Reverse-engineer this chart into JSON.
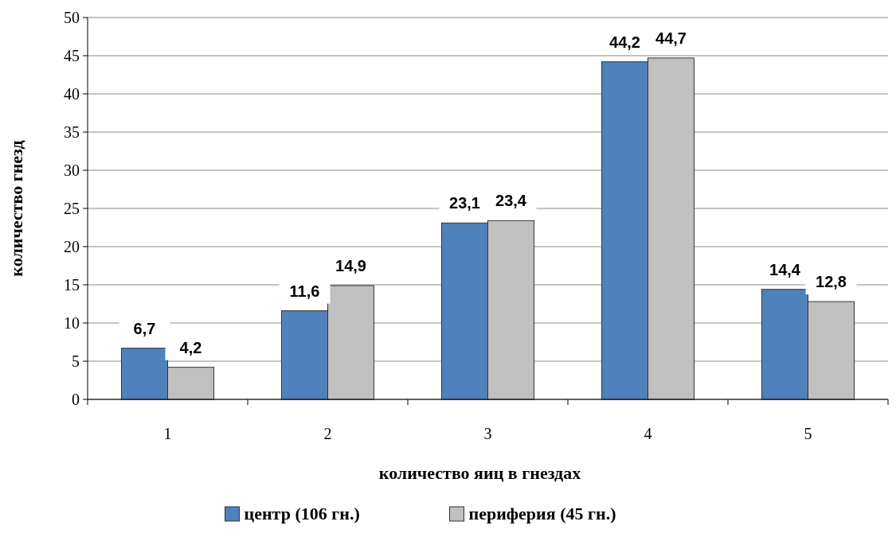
{
  "chart_data": {
    "type": "bar",
    "xlabel": "количество яиц в гнездах",
    "ylabel": "количество гнезд",
    "categories": [
      "1",
      "2",
      "3",
      "4",
      "5"
    ],
    "series": [
      {
        "name": "центр (106 гн.)",
        "color": "#4f81bd",
        "values": [
          6.7,
          11.6,
          23.1,
          44.2,
          14.4
        ]
      },
      {
        "name": "периферия (45 гн.)",
        "color": "#c0c0c0",
        "values": [
          4.2,
          14.9,
          23.4,
          44.7,
          12.8
        ]
      }
    ],
    "value_labels": [
      [
        "6,7",
        "11,6",
        "23,1",
        "44,2",
        "14,4"
      ],
      [
        "4,2",
        "14,9",
        "23,4",
        "44,7",
        "12,8"
      ]
    ],
    "ylim": [
      0,
      50
    ],
    "yticks": [
      0,
      5,
      10,
      15,
      20,
      25,
      30,
      35,
      40,
      45,
      50
    ],
    "grid": "y",
    "legend": "bottom"
  }
}
